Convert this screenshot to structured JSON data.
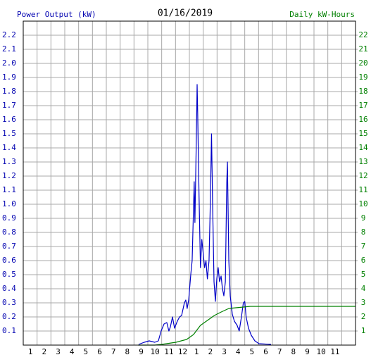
{
  "chart_data": {
    "type": "line",
    "title": "01/16/2019",
    "ylabel": "Power Output (kW)",
    "y2label": "Daily kW-Hours",
    "xlim": [
      0,
      24
    ],
    "xticks": [
      {
        "value": 1,
        "label": "1"
      },
      {
        "value": 2,
        "label": "2"
      },
      {
        "value": 3,
        "label": "3"
      },
      {
        "value": 4,
        "label": "4"
      },
      {
        "value": 5,
        "label": "5"
      },
      {
        "value": 6,
        "label": "6"
      },
      {
        "value": 7,
        "label": "7"
      },
      {
        "value": 8,
        "label": "8"
      },
      {
        "value": 9,
        "label": "9"
      },
      {
        "value": 10,
        "label": "10"
      },
      {
        "value": 11,
        "label": "11"
      },
      {
        "value": 12,
        "label": "12"
      },
      {
        "value": 13,
        "label": "1"
      },
      {
        "value": 14,
        "label": "2"
      },
      {
        "value": 15,
        "label": "3"
      },
      {
        "value": 16,
        "label": "4"
      },
      {
        "value": 17,
        "label": "5"
      },
      {
        "value": 18,
        "label": "6"
      },
      {
        "value": 19,
        "label": "7"
      },
      {
        "value": 20,
        "label": "8"
      },
      {
        "value": 21,
        "label": "9"
      },
      {
        "value": 22,
        "label": "10"
      },
      {
        "value": 23,
        "label": "11"
      }
    ],
    "ylim": [
      0,
      2.3
    ],
    "yticks": [
      0.1,
      0.2,
      0.3,
      0.4,
      0.5,
      0.6,
      0.7,
      0.8,
      0.9,
      {
        "value": 1,
        "label": "1.0"
      },
      1.1,
      1.2,
      1.3,
      1.4,
      1.5,
      1.6,
      1.7,
      1.8,
      1.9,
      {
        "value": 2,
        "label": "2.0"
      },
      2.1,
      2.2
    ],
    "y2lim": [
      0,
      23
    ],
    "y2ticks": [
      1,
      2,
      3,
      4,
      5,
      6,
      7,
      8,
      9,
      10,
      11,
      12,
      13,
      14,
      15,
      16,
      17,
      18,
      19,
      20,
      21,
      22
    ],
    "grid": true,
    "ylabel_color": "#0000b0",
    "y2label_color": "#008000",
    "series": [
      {
        "color": "#0000c8",
        "x": [
          8.34,
          8.74,
          9.1,
          9.5,
          9.76,
          9.96,
          10.17,
          10.37,
          10.52,
          10.63,
          10.78,
          10.93,
          11.13,
          11.29,
          11.44,
          11.64,
          11.74,
          11.84,
          11.95,
          12.1,
          12.2,
          12.35,
          12.4,
          12.5,
          12.56,
          12.6,
          12.7,
          12.8,
          12.9,
          13.0,
          13.1,
          13.2,
          13.3,
          13.42,
          13.5,
          13.6,
          13.67,
          13.78,
          13.88,
          13.98,
          14.08,
          14.18,
          14.29,
          14.39,
          14.49,
          14.6,
          14.7,
          14.75,
          14.85,
          14.95,
          15.1,
          15.25,
          15.45,
          15.6,
          15.76,
          15.9,
          16.0,
          16.1,
          16.27,
          16.47,
          16.73,
          17.03,
          17.9
        ],
        "values": [
          0.005,
          0.02,
          0.03,
          0.02,
          0.03,
          0.1,
          0.15,
          0.16,
          0.1,
          0.13,
          0.2,
          0.12,
          0.17,
          0.2,
          0.21,
          0.3,
          0.32,
          0.26,
          0.32,
          0.5,
          0.6,
          1.16,
          0.87,
          1.45,
          1.85,
          1.65,
          1.05,
          0.55,
          0.75,
          0.65,
          0.55,
          0.6,
          0.47,
          0.6,
          0.95,
          1.5,
          1.05,
          0.45,
          0.31,
          0.47,
          0.55,
          0.45,
          0.49,
          0.4,
          0.35,
          0.45,
          1.15,
          1.3,
          0.6,
          0.35,
          0.22,
          0.17,
          0.14,
          0.1,
          0.2,
          0.3,
          0.31,
          0.2,
          0.12,
          0.07,
          0.03,
          0.01,
          0.005
        ]
      },
      {
        "color": "#008000",
        "axis": "y2",
        "x": [
          8.3,
          9.5,
          10.0,
          11.03,
          11.8,
          12.3,
          12.8,
          13.3,
          13.8,
          14.3,
          14.85,
          15.35,
          15.9,
          16.4,
          24
        ],
        "values": [
          0,
          0,
          0.05,
          0.2,
          0.4,
          0.75,
          1.4,
          1.75,
          2.1,
          2.35,
          2.6,
          2.65,
          2.7,
          2.75,
          2.75
        ]
      }
    ]
  }
}
